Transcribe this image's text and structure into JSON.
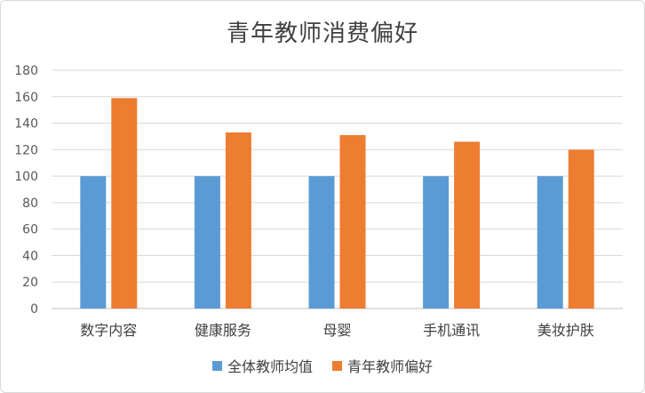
{
  "chart_data": {
    "type": "bar",
    "title": "青年教师消费偏好",
    "categories": [
      "数字内容",
      "健康服务",
      "母婴",
      "手机通讯",
      "美妆护肤"
    ],
    "series": [
      {
        "name": "全体教师均值",
        "values": [
          100,
          100,
          100,
          100,
          100
        ],
        "color": "#5b9bd5"
      },
      {
        "name": "青年教师偏好",
        "values": [
          159,
          133,
          131,
          126,
          120
        ],
        "color": "#ed7d31"
      }
    ],
    "ylim": [
      0,
      180
    ],
    "yticks": [
      0,
      20,
      40,
      60,
      80,
      100,
      120,
      140,
      160,
      180
    ],
    "grid": true,
    "legend_position": "bottom"
  }
}
